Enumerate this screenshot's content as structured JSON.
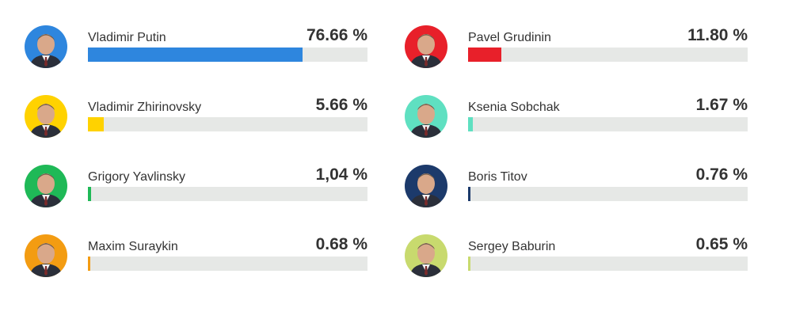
{
  "chart_data": {
    "type": "bar",
    "categories": [
      "Vladimir Putin",
      "Pavel Grudinin",
      "Vladimir Zhirinovsky",
      "Ksenia Sobchak",
      "Grigory Yavlinsky",
      "Boris Titov",
      "Maxim Suraykin",
      "Sergey Baburin"
    ],
    "values": [
      76.66,
      11.8,
      5.66,
      1.67,
      1.04,
      0.76,
      0.68,
      0.65
    ],
    "value_labels": [
      "76.66 %",
      "11.80 %",
      "5.66 %",
      "1.67 %",
      "1,04 %",
      "0.76 %",
      "0.68 %",
      "0.65 %"
    ],
    "colors": [
      "#2e86de",
      "#e8202a",
      "#ffd200",
      "#5fe0c1",
      "#1fb957",
      "#1c3a6b",
      "#f39c12",
      "#c8da6e"
    ],
    "xlim": [
      0,
      100
    ],
    "title": "",
    "xlabel": "",
    "ylabel": "",
    "grid": false
  }
}
